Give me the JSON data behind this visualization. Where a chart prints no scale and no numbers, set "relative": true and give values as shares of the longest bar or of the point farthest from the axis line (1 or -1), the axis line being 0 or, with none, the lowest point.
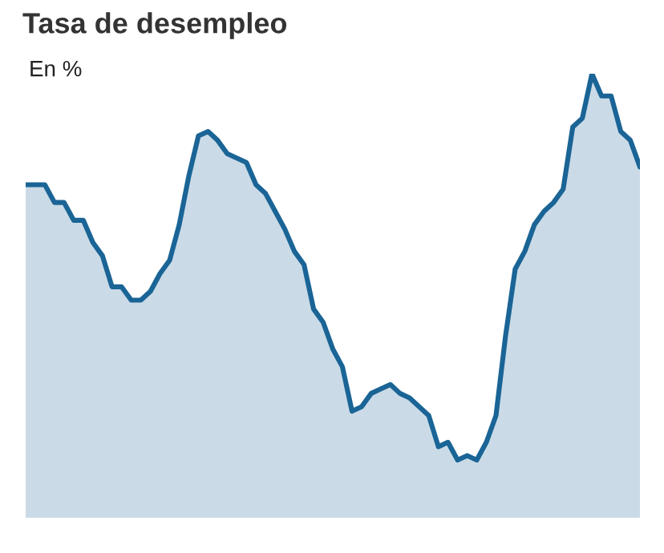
{
  "chart_data": {
    "type": "area",
    "title": "Tasa de desempleo",
    "subtitle": "En %",
    "relative": true,
    "categories": [
      null,
      null,
      null,
      null,
      null,
      null,
      null,
      null,
      null,
      null,
      null,
      null,
      null,
      null,
      null,
      null,
      null,
      null,
      null,
      null,
      null,
      null,
      null,
      null,
      null,
      null,
      null,
      null,
      null,
      null,
      null,
      null,
      null,
      null,
      null,
      null,
      null,
      null,
      null,
      null,
      null,
      null,
      null,
      null,
      null,
      null,
      null,
      null,
      null,
      null,
      null,
      null,
      null,
      null,
      null,
      null,
      null,
      null,
      null,
      null,
      null,
      null,
      null,
      null,
      null
    ],
    "series": [
      {
        "color": "#1a6496",
        "values": [
          0.75,
          0.75,
          0.75,
          0.71,
          0.71,
          0.67,
          0.67,
          0.62,
          0.59,
          0.52,
          0.52,
          0.49,
          0.49,
          0.51,
          0.55,
          0.58,
          0.66,
          0.77,
          0.86,
          0.87,
          0.85,
          0.82,
          0.81,
          0.8,
          0.75,
          0.73,
          0.69,
          0.65,
          0.6,
          0.57,
          0.47,
          0.44,
          0.38,
          0.34,
          0.24,
          0.25,
          0.28,
          0.29,
          0.3,
          0.28,
          0.27,
          0.25,
          0.23,
          0.16,
          0.17,
          0.13,
          0.14,
          0.13,
          0.17,
          0.23,
          0.41,
          0.56,
          0.6,
          0.66,
          0.69,
          0.71,
          0.74,
          0.88,
          0.9,
          1.0,
          0.95,
          0.95,
          0.87,
          0.85,
          0.79
        ]
      }
    ]
  }
}
